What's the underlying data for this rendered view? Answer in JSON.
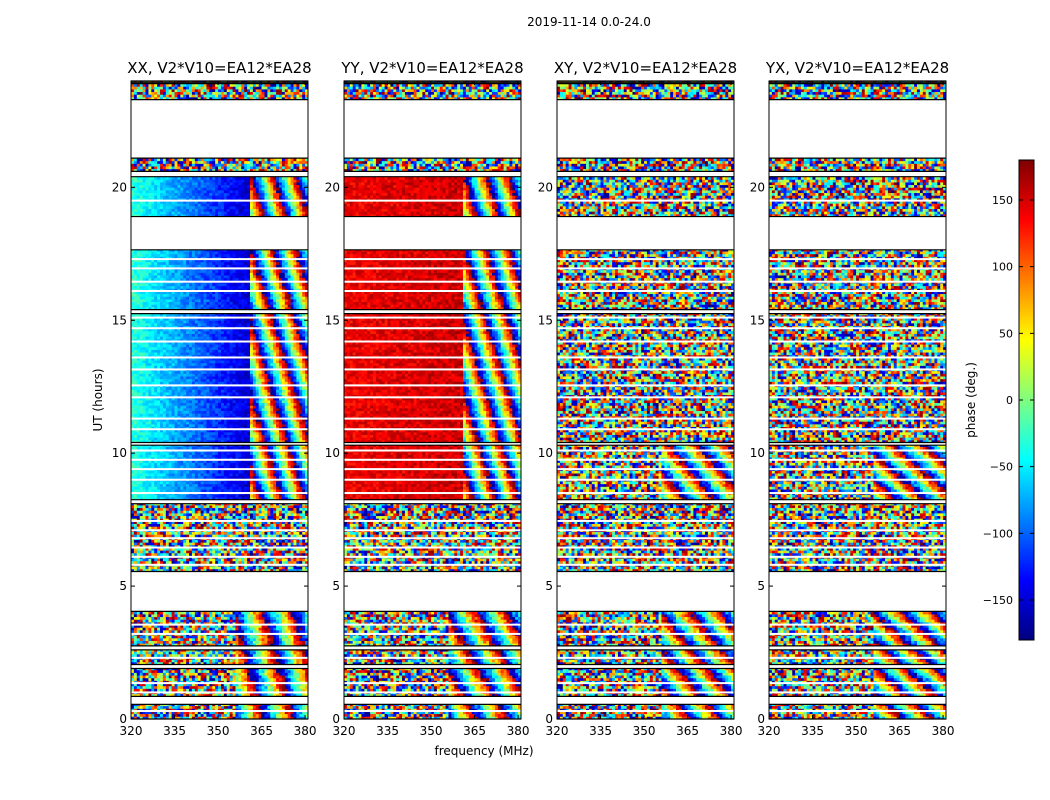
{
  "figure": {
    "suptitle": "2019-11-14 0.0-24.0",
    "ylabel": "UT (hours)",
    "xlabel": "frequency (MHz)",
    "colorbar": {
      "label": "phase (deg.)",
      "ticks": [
        150,
        100,
        50,
        0,
        -50,
        -100,
        -150
      ],
      "tick_labels": [
        "150",
        "100",
        "50",
        "0",
        "−50",
        "−100",
        "−150"
      ],
      "range": [
        -180,
        180
      ],
      "colormap": "jet"
    }
  },
  "chart_data": [
    {
      "type": "heatmap",
      "title": "XX, V2*V10=EA12*EA28",
      "xlim": [
        320,
        381
      ],
      "ylim": [
        0,
        24
      ],
      "xticks": [
        320,
        335,
        350,
        365,
        380
      ],
      "xtick_labels": [
        "320",
        "335",
        "350",
        "365",
        "380"
      ],
      "yticks": [
        0,
        5,
        10,
        15,
        20
      ],
      "ytick_labels": [
        "0",
        "5",
        "10",
        "15",
        "20"
      ],
      "value": "phase (deg.)",
      "coherent_phase_deg": -30,
      "phase_slope_deg_per_mhz": -3
    },
    {
      "type": "heatmap",
      "title": "YY, V2*V10=EA12*EA28",
      "xlim": [
        320,
        381
      ],
      "ylim": [
        0,
        24
      ],
      "xticks": [
        320,
        335,
        350,
        365,
        380
      ],
      "xtick_labels": [
        "320",
        "335",
        "350",
        "365",
        "380"
      ],
      "yticks": [
        0,
        5,
        10,
        15,
        20
      ],
      "ytick_labels": [
        "0",
        "5",
        "10",
        "15",
        "20"
      ],
      "value": "phase (deg.)",
      "coherent_phase_deg": 140,
      "phase_slope_deg_per_mhz": 0.3
    },
    {
      "type": "heatmap",
      "title": "XY, V2*V10=EA12*EA28",
      "xlim": [
        320,
        381
      ],
      "ylim": [
        0,
        24
      ],
      "xticks": [
        320,
        335,
        350,
        365,
        380
      ],
      "xtick_labels": [
        "320",
        "335",
        "350",
        "365",
        "380"
      ],
      "yticks": [
        0,
        5,
        10,
        15,
        20
      ],
      "ytick_labels": [
        "0",
        "5",
        "10",
        "15",
        "20"
      ],
      "value": "phase (deg.)",
      "coherent_phase_deg": null,
      "phase_slope_deg_per_mhz": 0
    },
    {
      "type": "heatmap",
      "title": "YX, V2*V10=EA12*EA28",
      "xlim": [
        320,
        381
      ],
      "ylim": [
        0,
        24
      ],
      "xticks": [
        320,
        335,
        350,
        365,
        380
      ],
      "xtick_labels": [
        "320",
        "335",
        "350",
        "365",
        "380"
      ],
      "yticks": [
        0,
        5,
        10,
        15,
        20
      ],
      "ytick_labels": [
        "0",
        "5",
        "10",
        "15",
        "20"
      ],
      "value": "phase (deg.)",
      "coherent_phase_deg": null,
      "phase_slope_deg_per_mhz": 0
    }
  ],
  "data_segments_ut_hours": [
    [
      0.0,
      0.55
    ],
    [
      0.85,
      1.9
    ],
    [
      2.05,
      2.6
    ],
    [
      2.75,
      4.05
    ],
    [
      5.55,
      8.1
    ],
    [
      8.25,
      10.3
    ],
    [
      10.4,
      15.25
    ],
    [
      15.4,
      17.65
    ],
    [
      18.9,
      20.4
    ],
    [
      20.6,
      21.1
    ],
    [
      23.3,
      23.9
    ],
    [
      23.95,
      24.0
    ]
  ],
  "rfi_gap_hours": [
    0.3,
    1.0,
    1.35,
    2.3,
    3.2,
    3.55,
    5.8,
    6.1,
    6.45,
    6.8,
    7.1,
    7.45,
    8.5,
    9.0,
    9.4,
    9.75,
    10.1,
    10.9,
    11.3,
    12.1,
    12.55,
    13.15,
    13.6,
    14.2,
    14.7,
    15.1,
    16.1,
    16.45,
    16.95,
    17.3,
    19.5
  ]
}
